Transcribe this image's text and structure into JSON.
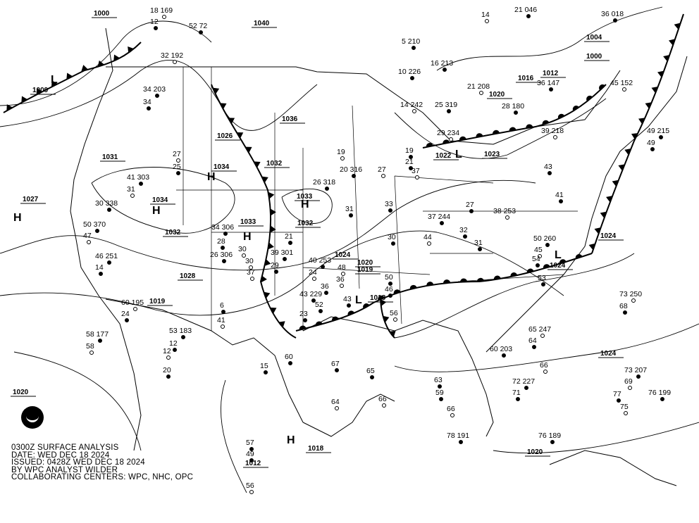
{
  "title": {
    "line1": "0300Z SURFACE ANALYSIS",
    "line2": "DATE: WED DEC 18 2024",
    "line3": "ISSUED: 0428Z WED DEC 18 2024",
    "line4": "BY WPC ANALYST WILDER",
    "line5": "COLLABORATING CENTERS: WPC, NHC, OPC"
  },
  "logo": "NOAA",
  "colors": {
    "cold_front": "#000000",
    "warm_front": "#000000",
    "isobar": "#000000",
    "background": "#ffffff"
  },
  "pressure_centers": [
    {
      "type": "H",
      "value": "1027"
    },
    {
      "type": "L",
      "value": "1009"
    },
    {
      "type": "H",
      "value": "1034"
    },
    {
      "type": "H",
      "value": "1034"
    },
    {
      "type": "H",
      "value": "1033"
    },
    {
      "type": "H",
      "value": "1033"
    },
    {
      "type": "L",
      "value": "1018"
    },
    {
      "type": "L",
      "value": "1022"
    },
    {
      "type": "L",
      "value": "1024"
    },
    {
      "type": "H",
      "value": "1018"
    }
  ],
  "isobar_labels": [
    "1000",
    "1040",
    "1036",
    "1032",
    "1032",
    "1032",
    "1031",
    "1028",
    "1026",
    "1024",
    "1020",
    "1019",
    "1019",
    "1020",
    "1012",
    "1020",
    "1024",
    "1024",
    "1023",
    "1020",
    "1016",
    "1012",
    "1004",
    "1000"
  ],
  "stations": [
    "18 169",
    "12",
    "52 72",
    "32 192",
    "34 203",
    "34",
    "27",
    "25",
    "41 303",
    "31",
    "30 338",
    "50 370",
    "47",
    "46 251",
    "14",
    "60 195",
    "24",
    "58 177",
    "58",
    "53 183",
    "12",
    "41",
    "6",
    "28",
    "30",
    "26 306",
    "34 306",
    "30",
    "39 301",
    "29",
    "37",
    "21",
    "40 253",
    "24",
    "43 229",
    "23",
    "36",
    "43",
    "52",
    "56",
    "46",
    "50",
    "48",
    "36",
    "37 244",
    "44",
    "32",
    "27",
    "38 253",
    "31",
    "50 260",
    "45",
    "54",
    "53",
    "65 247",
    "64",
    "60 203",
    "66",
    "72 227",
    "71",
    "73 250",
    "68",
    "73 207",
    "69",
    "76 199",
    "77",
    "75",
    "76 189",
    "78 191",
    "66",
    "63",
    "59",
    "64",
    "67",
    "65",
    "66",
    "60",
    "57",
    "56",
    "49",
    "15",
    "12",
    "20",
    "31",
    "19",
    "26 318",
    "20 316",
    "27",
    "33",
    "30",
    "37",
    "25 319",
    "16 213",
    "21 208",
    "28 180",
    "36 147",
    "45 152",
    "49 215",
    "49",
    "39 218",
    "43",
    "41",
    "29 234",
    "19",
    "21",
    "14 242",
    "10 226",
    "5 210",
    "14",
    "21 046",
    "36 018"
  ]
}
